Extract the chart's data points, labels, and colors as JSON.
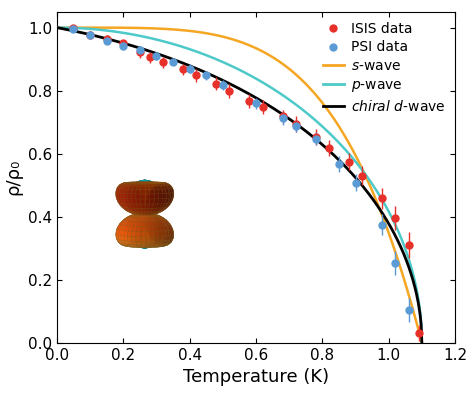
{
  "title": "",
  "xlabel": "Temperature (K)",
  "ylabel": "ρ/ρ₀",
  "xlim": [
    0.0,
    1.2
  ],
  "ylim": [
    0.0,
    1.05
  ],
  "xticks": [
    0.0,
    0.2,
    0.4,
    0.6,
    0.8,
    1.0,
    1.2
  ],
  "yticks": [
    0.0,
    0.2,
    0.4,
    0.6,
    0.8,
    1.0
  ],
  "Tc": 1.1,
  "ISIS_data": {
    "x": [
      0.05,
      0.1,
      0.15,
      0.2,
      0.25,
      0.28,
      0.32,
      0.38,
      0.42,
      0.48,
      0.52,
      0.58,
      0.62,
      0.68,
      0.72,
      0.78,
      0.82,
      0.88,
      0.92,
      0.98,
      1.02,
      1.06,
      1.09
    ],
    "y": [
      0.998,
      0.978,
      0.963,
      0.95,
      0.922,
      0.906,
      0.89,
      0.868,
      0.848,
      0.822,
      0.8,
      0.768,
      0.748,
      0.718,
      0.695,
      0.652,
      0.618,
      0.575,
      0.53,
      0.458,
      0.395,
      0.31,
      0.03
    ],
    "yerr": [
      0.008,
      0.012,
      0.012,
      0.012,
      0.018,
      0.018,
      0.018,
      0.018,
      0.02,
      0.02,
      0.022,
      0.022,
      0.022,
      0.022,
      0.025,
      0.025,
      0.025,
      0.028,
      0.03,
      0.032,
      0.038,
      0.04,
      0.025
    ],
    "color": "#e8302a",
    "label": "ISIS data"
  },
  "PSI_data": {
    "x": [
      0.05,
      0.1,
      0.15,
      0.2,
      0.25,
      0.3,
      0.35,
      0.4,
      0.45,
      0.5,
      0.6,
      0.68,
      0.72,
      0.78,
      0.85,
      0.9,
      0.98,
      1.02,
      1.06
    ],
    "y": [
      0.995,
      0.975,
      0.958,
      0.942,
      0.928,
      0.91,
      0.892,
      0.87,
      0.848,
      0.818,
      0.76,
      0.712,
      0.688,
      0.648,
      0.568,
      0.508,
      0.375,
      0.252,
      0.105
    ],
    "yerr": [
      0.008,
      0.01,
      0.01,
      0.012,
      0.012,
      0.012,
      0.012,
      0.015,
      0.015,
      0.015,
      0.018,
      0.02,
      0.02,
      0.022,
      0.025,
      0.028,
      0.032,
      0.038,
      0.038
    ],
    "color": "#5b9bd5",
    "label": "PSI data"
  },
  "s_wave_color": "#f5a623",
  "p_wave_color": "#4ec9c9",
  "chiral_d_wave_color": "#000000",
  "background_color": "#ffffff",
  "legend_fontsize": 10,
  "axis_fontsize": 13,
  "tick_fontsize": 11
}
